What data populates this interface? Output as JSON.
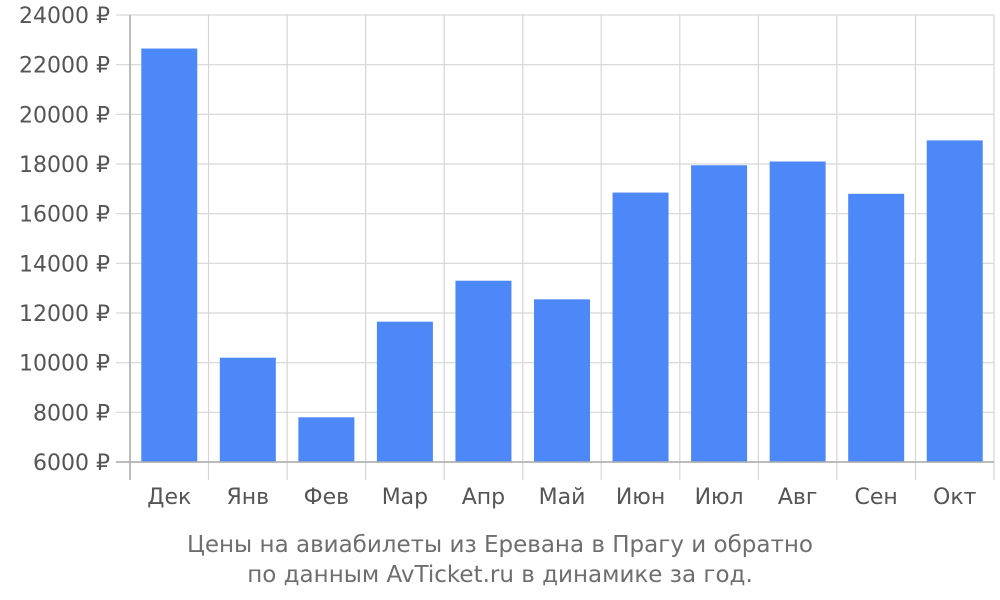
{
  "chart_data": {
    "type": "bar",
    "categories": [
      "Дек",
      "Янв",
      "Фев",
      "Мар",
      "Апр",
      "Май",
      "Июн",
      "Июл",
      "Авг",
      "Сен",
      "Окт"
    ],
    "values": [
      22650,
      10200,
      7800,
      11650,
      13300,
      12550,
      16850,
      17950,
      18100,
      16800,
      18950
    ],
    "ylim": [
      6000,
      24000
    ],
    "yticks": [
      6000,
      8000,
      10000,
      12000,
      14000,
      16000,
      18000,
      20000,
      22000,
      24000
    ],
    "ytick_labels": [
      "6000 ₽",
      "8000 ₽",
      "10000 ₽",
      "12000 ₽",
      "14000 ₽",
      "16000 ₽",
      "18000 ₽",
      "20000 ₽",
      "22000 ₽",
      "24000 ₽"
    ],
    "grid": true,
    "bar_color": "#4d88f9",
    "caption_lines": [
      "Цены на авиабилеты из Еревана в Прагу и обратно",
      "по данным AvTicket.ru в динамике за год."
    ]
  }
}
